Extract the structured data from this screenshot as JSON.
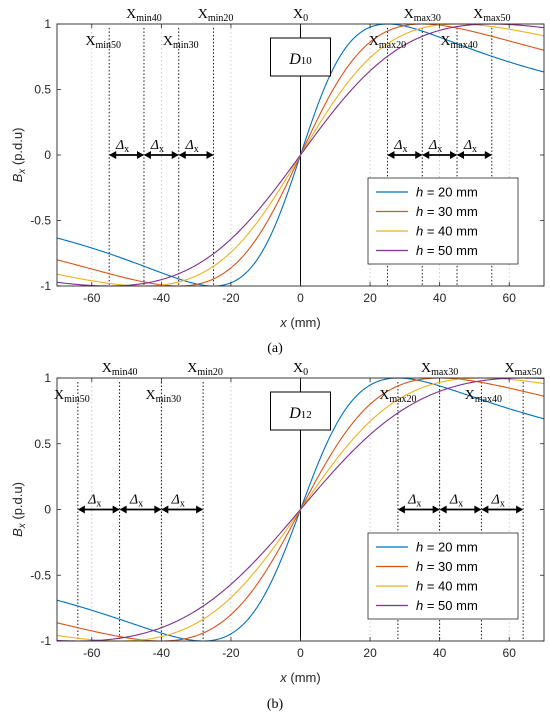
{
  "chart_data": [
    {
      "type": "line",
      "caption": "(a)",
      "box_label": "D10",
      "xlabel": "x (mm)",
      "ylabel": "Bx (p.d.u)",
      "xlim": [
        -70,
        70
      ],
      "ylim": [
        -1,
        1
      ],
      "xticks": [
        "-60",
        "-40",
        "-20",
        "0",
        "20",
        "40",
        "60"
      ],
      "yticks": [
        "-1",
        "-0.5",
        "0",
        "0.5",
        "1"
      ],
      "grid": "x-major-dotted",
      "legend_position": "lower-right",
      "peak_widths": [
        25,
        35,
        45,
        55
      ],
      "series": [
        {
          "name": "h = 20 mm",
          "color": "#0072BD"
        },
        {
          "name": "h = 30 mm",
          "color": "#D95319"
        },
        {
          "name": "h = 40 mm",
          "color": "#EDB120"
        },
        {
          "name": "h = 50 mm",
          "color": "#7E2F8E"
        }
      ],
      "markers": [
        {
          "label": "Xmin50",
          "x": -55
        },
        {
          "label": "Xmin40",
          "x": -45
        },
        {
          "label": "Xmin30",
          "x": -35
        },
        {
          "label": "Xmin20",
          "x": -25
        },
        {
          "label": "X0",
          "x": 0
        },
        {
          "label": "Xmax20",
          "x": 25
        },
        {
          "label": "Xmax30",
          "x": 35
        },
        {
          "label": "Xmax40",
          "x": 45
        },
        {
          "label": "Xmax50",
          "x": 55
        }
      ],
      "delta_label": "Δx"
    },
    {
      "type": "line",
      "caption": "(b)",
      "box_label": "D12",
      "xlabel": "x (mm)",
      "ylabel": "Bx (p.d.u)",
      "xlim": [
        -70,
        70
      ],
      "ylim": [
        -1,
        1
      ],
      "xticks": [
        "-60",
        "-40",
        "-20",
        "0",
        "20",
        "40",
        "60"
      ],
      "yticks": [
        "-1",
        "-0.5",
        "0",
        "0.5",
        "1"
      ],
      "grid": "x-major-dotted",
      "legend_position": "lower-right",
      "peak_widths": [
        28,
        40,
        52,
        64
      ],
      "series": [
        {
          "name": "h = 20 mm",
          "color": "#0072BD"
        },
        {
          "name": "h = 30 mm",
          "color": "#D95319"
        },
        {
          "name": "h = 40 mm",
          "color": "#EDB120"
        },
        {
          "name": "h = 50 mm",
          "color": "#7E2F8E"
        }
      ],
      "markers": [
        {
          "label": "Xmin50",
          "x": -64
        },
        {
          "label": "Xmin40",
          "x": -52
        },
        {
          "label": "Xmin30",
          "x": -40
        },
        {
          "label": "Xmin20",
          "x": -28
        },
        {
          "label": "X0",
          "x": 0
        },
        {
          "label": "Xmax20",
          "x": 28
        },
        {
          "label": "Xmax30",
          "x": 40
        },
        {
          "label": "Xmax40",
          "x": 52
        },
        {
          "label": "Xmax50",
          "x": 64
        }
      ],
      "delta_label": "Δx"
    }
  ]
}
